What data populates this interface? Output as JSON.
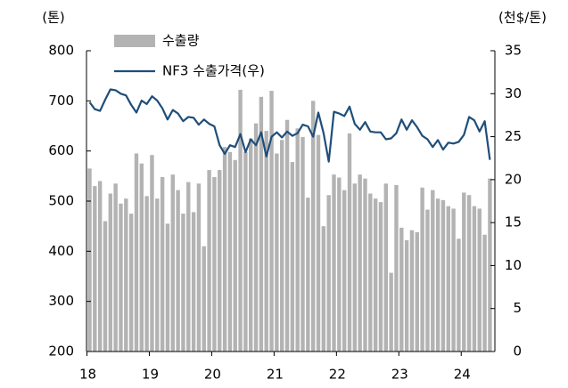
{
  "chart_data": {
    "type": "bar-line",
    "y_label": "(톤)",
    "y2_label": "(천$/톤)",
    "categories": [
      "18",
      null,
      null,
      null,
      null,
      null,
      null,
      null,
      null,
      null,
      null,
      null,
      "19",
      null,
      null,
      null,
      null,
      null,
      null,
      null,
      null,
      null,
      null,
      null,
      "20",
      null,
      null,
      null,
      null,
      null,
      null,
      null,
      null,
      null,
      null,
      null,
      "21",
      null,
      null,
      null,
      null,
      null,
      null,
      null,
      null,
      null,
      null,
      null,
      "22",
      null,
      null,
      null,
      null,
      null,
      null,
      null,
      null,
      null,
      null,
      null,
      "23",
      null,
      null,
      null,
      null,
      null,
      null,
      null,
      null,
      null,
      null,
      null,
      "24",
      null,
      null,
      null,
      null,
      null
    ],
    "series": [
      {
        "name": "수출량",
        "type": "bar",
        "axis": "y",
        "color": "#b3b3b3",
        "values": [
          565,
          530,
          540,
          460,
          515,
          535,
          495,
          505,
          475,
          595,
          575,
          510,
          592,
          505,
          548,
          455,
          553,
          522,
          475,
          538,
          478,
          535,
          410,
          562,
          548,
          562,
          608,
          598,
          582,
          722,
          598,
          625,
          655,
          708,
          640,
          720,
          595,
          622,
          662,
          578,
          645,
          628,
          507,
          700,
          632,
          450,
          512,
          553,
          547,
          522,
          635,
          535,
          553,
          545,
          515,
          505,
          498,
          535,
          357,
          532,
          447,
          422,
          442,
          438,
          527,
          483,
          522,
          505,
          502,
          490,
          485,
          425,
          517,
          512,
          490,
          485,
          433,
          545
        ]
      },
      {
        "name": "NF3 수출가격(우)",
        "type": "line",
        "axis": "y2",
        "color": "#1f4e79",
        "values": [
          29.0,
          28.2,
          28.0,
          29.3,
          30.5,
          30.4,
          30.0,
          29.8,
          28.7,
          27.8,
          29.2,
          28.8,
          29.7,
          29.2,
          28.3,
          27.0,
          28.1,
          27.7,
          26.8,
          27.3,
          27.2,
          26.4,
          27.0,
          26.5,
          26.2,
          24.0,
          23.0,
          24.0,
          23.8,
          25.3,
          23.2,
          24.7,
          24.0,
          25.5,
          22.7,
          25.0,
          25.5,
          24.9,
          25.6,
          25.1,
          25.4,
          26.4,
          26.2,
          25.0,
          27.8,
          25.4,
          22.1,
          27.9,
          27.7,
          27.4,
          28.5,
          26.5,
          25.8,
          26.7,
          25.6,
          25.5,
          25.5,
          24.7,
          24.8,
          25.4,
          27.0,
          25.8,
          26.9,
          26.1,
          25.1,
          24.7,
          23.8,
          24.6,
          23.5,
          24.3,
          24.2,
          24.4,
          25.2,
          27.3,
          26.9,
          25.6,
          26.8,
          22.3
        ]
      }
    ],
    "ylim": [
      200,
      800
    ],
    "yticks": [
      200,
      300,
      400,
      500,
      600,
      700,
      800
    ],
    "y2lim": [
      0,
      35
    ],
    "y2ticks": [
      0,
      5,
      10,
      15,
      20,
      25,
      30,
      35
    ],
    "legend": "upper left",
    "grid": false
  }
}
